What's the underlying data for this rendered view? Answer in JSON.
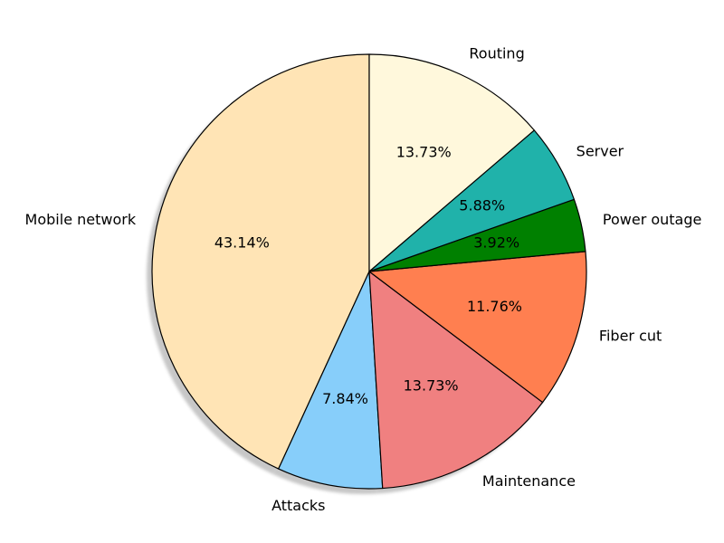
{
  "chart_data": {
    "type": "pie",
    "title": "",
    "start_angle_deg": 90,
    "direction": "counterclockwise",
    "shadow": true,
    "edge_color": "#000000",
    "slices": [
      {
        "label": "Mobile network",
        "value": 43.14,
        "pct_label": "43.14%",
        "color": "#FFE4B5"
      },
      {
        "label": "Attacks",
        "value": 7.84,
        "pct_label": "7.84%",
        "color": "#87CEFA"
      },
      {
        "label": "Maintenance",
        "value": 13.73,
        "pct_label": "13.73%",
        "color": "#F08080"
      },
      {
        "label": "Fiber cut",
        "value": 11.76,
        "pct_label": "11.76%",
        "color": "#FF7F50"
      },
      {
        "label": "Power outage",
        "value": 3.92,
        "pct_label": "3.92%",
        "color": "#008000"
      },
      {
        "label": "Server",
        "value": 5.88,
        "pct_label": "5.88%",
        "color": "#20B2AA"
      },
      {
        "label": "Routing",
        "value": 13.73,
        "pct_label": "13.73%",
        "color": "#FFF8DC"
      }
    ]
  }
}
